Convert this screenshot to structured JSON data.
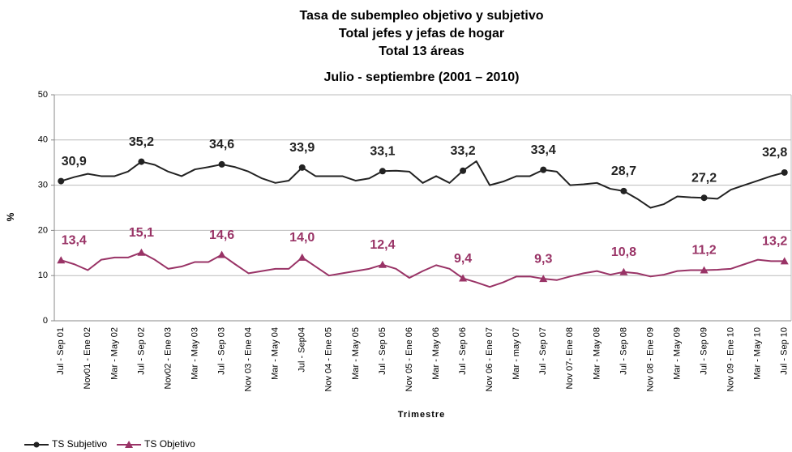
{
  "chart_data": {
    "type": "line",
    "title": [
      "Tasa de subempleo objetivo y subjetivo",
      "Total jefes y jefas de hogar",
      "Total 13 áreas",
      "Julio - septiembre (2001 – 2010)"
    ],
    "x_label": "Trimestre",
    "y_label": "%",
    "categories": [
      "Jul - Sep 01",
      null,
      "Nov01 - Ene 02",
      null,
      "Mar - May 02",
      null,
      "Jul - Sep 02",
      null,
      "Nov02 - Ene 03",
      null,
      "Mar - May 03",
      null,
      "Jul - Sep 03",
      null,
      "Nov 03 - Ene 04",
      null,
      "Mar - May 04",
      null,
      "Jul - Sep04",
      null,
      "Nov 04 - Ene 05",
      null,
      "Mar - May 05",
      null,
      "Jul - Sep 05",
      null,
      "Nov 05 - Ene 06",
      null,
      "Mar - May 06",
      null,
      "Jul - Sep 06",
      null,
      "Nov 06 - Ene 07",
      null,
      "Mar - may 07",
      null,
      "Jul - Sep 07",
      null,
      "Nov 07- Ene 08",
      null,
      "Mar - May 08",
      null,
      "Jul - Sep 08",
      null,
      "Nov 08 - Ene 09",
      null,
      "Mar - May 09",
      null,
      "Jul - Sep 09",
      null,
      "Nov 09 - Ene 10",
      null,
      "Mar - May 10",
      null,
      "Jul - Sep 10"
    ],
    "series": [
      {
        "name": "TS Subjetivo",
        "color": "#222222",
        "marker": "circle",
        "values": [
          30.9,
          31.8,
          32.5,
          32,
          32,
          33,
          35.2,
          34.5,
          33,
          32,
          33.5,
          34,
          34.6,
          34,
          33,
          31.5,
          30.5,
          31,
          33.9,
          32,
          32,
          32,
          31,
          31.5,
          33.1,
          33.2,
          33,
          30.5,
          32,
          30.5,
          33.2,
          35.3,
          30,
          30.8,
          32,
          32,
          33.4,
          33,
          30,
          30.2,
          30.5,
          29.2,
          28.7,
          27,
          25,
          25.8,
          27.5,
          27.3,
          27.2,
          27,
          29,
          30,
          31,
          32,
          32.8
        ],
        "value_labels": [
          "30,9",
          null,
          null,
          null,
          null,
          null,
          "35,2",
          null,
          null,
          null,
          null,
          null,
          "34,6",
          null,
          null,
          null,
          null,
          null,
          "33,9",
          null,
          null,
          null,
          null,
          null,
          "33,1",
          null,
          null,
          null,
          null,
          null,
          "33,2",
          null,
          null,
          null,
          null,
          null,
          "33,4",
          null,
          null,
          null,
          null,
          null,
          "28,7",
          null,
          null,
          null,
          null,
          null,
          "27,2",
          null,
          null,
          null,
          null,
          null,
          "32,8"
        ]
      },
      {
        "name": "TS Objetivo",
        "color": "#993366",
        "marker": "triangle",
        "values": [
          13.4,
          12.5,
          11.2,
          13.5,
          14,
          14,
          15.1,
          13.5,
          11.5,
          12,
          13,
          13,
          14.6,
          12.5,
          10.5,
          11,
          11.5,
          11.5,
          14.0,
          12,
          10,
          10.5,
          11,
          11.5,
          12.4,
          11.5,
          9.5,
          11,
          12.3,
          11.5,
          9.4,
          8.5,
          7.5,
          8.5,
          9.8,
          9.8,
          9.3,
          9,
          9.8,
          10.5,
          11,
          10.2,
          10.8,
          10.5,
          9.8,
          10.2,
          11,
          11.2,
          11.2,
          11.3,
          11.5,
          12.5,
          13.5,
          13.2,
          13.2
        ],
        "value_labels": [
          "13,4",
          null,
          null,
          null,
          null,
          null,
          "15,1",
          null,
          null,
          null,
          null,
          null,
          "14,6",
          null,
          null,
          null,
          null,
          null,
          "14,0",
          null,
          null,
          null,
          null,
          null,
          "12,4",
          null,
          null,
          null,
          null,
          null,
          "9,4",
          null,
          null,
          null,
          null,
          null,
          "9,3",
          null,
          null,
          null,
          null,
          null,
          "10,8",
          null,
          null,
          null,
          null,
          null,
          "11,2",
          null,
          null,
          null,
          null,
          null,
          "13,2"
        ]
      }
    ],
    "ylim": [
      0,
      50
    ],
    "yticks": [
      0,
      10,
      20,
      30,
      40,
      50
    ],
    "grid": true,
    "legend": "bottom-left"
  }
}
